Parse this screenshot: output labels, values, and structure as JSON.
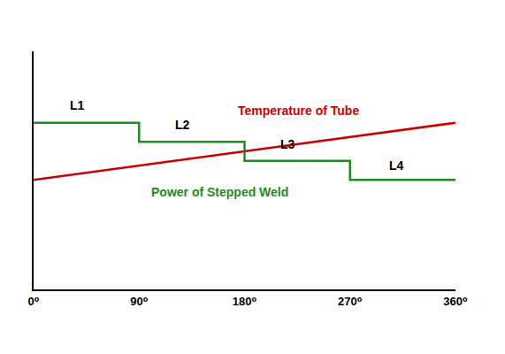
{
  "chart_data": {
    "type": "line",
    "x_is_numeric": true,
    "series": [
      {
        "name": "Temperature of Tube",
        "color": "#cc0000",
        "line_style": "solid",
        "x": [
          0,
          360
        ],
        "values": [
          46,
          70
        ]
      },
      {
        "name": "Power of Stepped Weld",
        "color": "#1e8c1e",
        "line_style": "step",
        "x": [
          0,
          90,
          180,
          270,
          360
        ],
        "values": [
          70,
          62,
          54,
          46,
          46
        ]
      }
    ],
    "annotations": [
      {
        "text": "L1",
        "x": 37,
        "y": 77.5,
        "color": "#000000"
      },
      {
        "text": "L2",
        "x": 127,
        "y": 69,
        "color": "#000000"
      },
      {
        "text": "L3",
        "x": 217,
        "y": 61,
        "color": "#000000"
      },
      {
        "text": "L4",
        "x": 310,
        "y": 52,
        "color": "#000000"
      },
      {
        "text": "Temperature of Tube",
        "x": 226,
        "y": 75,
        "color": "#cc0000"
      },
      {
        "text": "Power of Stepped Weld",
        "x": 159,
        "y": 41,
        "color": "#1e8c1e"
      }
    ],
    "xlim": [
      0,
      360
    ],
    "xticks": [
      {
        "value": 0,
        "label": "0⁰"
      },
      {
        "value": 90,
        "label": "90⁰"
      },
      {
        "value": 180,
        "label": "180⁰"
      },
      {
        "value": 270,
        "label": "270⁰"
      },
      {
        "value": 360,
        "label": "360⁰"
      }
    ],
    "ylim": [
      0,
      100
    ],
    "yticks": [],
    "grid": false,
    "tick_labels": "x"
  }
}
